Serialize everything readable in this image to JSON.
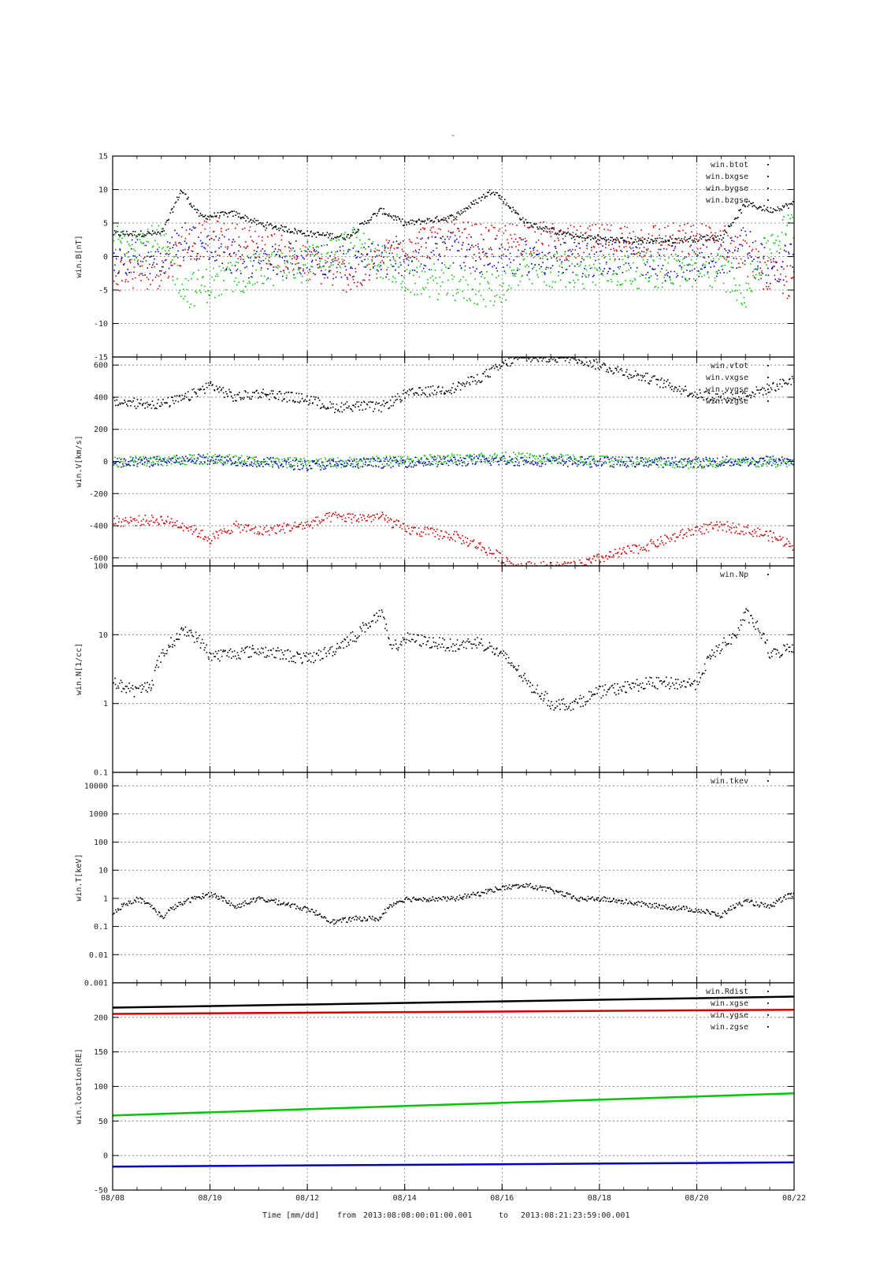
{
  "figure": {
    "top_mark": "-",
    "footer": {
      "time_label": "Time [mm/dd]",
      "from_label": "from",
      "from_value": "2013:08:08:00:01:00.001",
      "to_label": "to",
      "to_value": "2013:08:21:23:59:00.001"
    }
  },
  "chart_data": [
    {
      "type": "scatter",
      "ylabel": "win.B[nT]",
      "ylim": [
        -15,
        15
      ],
      "yscale": "linear",
      "yticks": [
        -15,
        -10,
        -5,
        0,
        5,
        10,
        15
      ],
      "ytick_labels": [
        "-15",
        "-10",
        "-5",
        "0",
        "5",
        "10",
        "15"
      ],
      "grid": true,
      "legend": "top-right",
      "series": [
        {
          "name": "win.btot",
          "color": "#000000",
          "x": [
            8.0,
            9.0,
            9.4,
            9.8,
            10.5,
            11.0,
            12.0,
            12.8,
            13.5,
            14.0,
            15.0,
            15.8,
            16.5,
            17.5,
            18.5,
            19.5,
            20.5,
            21.0,
            21.5,
            22.0
          ],
          "y": [
            3.5,
            3.5,
            10,
            6,
            6.5,
            5,
            3.5,
            3,
            7,
            5,
            6,
            10,
            5,
            3,
            2.5,
            2.5,
            3,
            8,
            7,
            8
          ]
        },
        {
          "name": "win.bxgse",
          "color": "#000000",
          "x": [
            8.0,
            9.0,
            9.5,
            10.0,
            11.0,
            12.0,
            13.0,
            14.0,
            15.0,
            15.8,
            16.5,
            17.5,
            18.5,
            19.5,
            20.5,
            21.0,
            21.5,
            22.0
          ],
          "y": [
            -2.5,
            -2,
            2,
            3,
            2,
            -1,
            -3,
            2,
            3,
            2,
            3,
            2,
            2.5,
            2.5,
            2.5,
            0,
            -3,
            -4
          ]
        },
        {
          "name": "win.bygse",
          "color": "#000000",
          "x": [
            8.0,
            9.0,
            9.5,
            10.0,
            11.0,
            12.0,
            13.0,
            14.0,
            15.0,
            15.8,
            16.5,
            17.5,
            18.5,
            19.5,
            20.5,
            21.0,
            21.5,
            22.0
          ],
          "y": [
            2.5,
            2,
            -5,
            -4,
            -2,
            -1,
            2,
            -3,
            -4,
            -5,
            -2,
            -2,
            -2,
            -2,
            -2,
            -5,
            2,
            5
          ]
        },
        {
          "name": "win.bzgse",
          "color": "#000000",
          "x": [
            8.0,
            9.0,
            9.5,
            10.0,
            11.0,
            12.0,
            13.0,
            14.0,
            15.0,
            15.8,
            16.5,
            17.5,
            18.5,
            19.5,
            20.5,
            21.0,
            21.5,
            22.0
          ],
          "y": [
            0,
            0,
            3,
            1,
            -1,
            0,
            -1,
            0,
            1,
            0,
            0,
            -0.5,
            0,
            -1,
            -0.5,
            2,
            -2,
            0
          ]
        }
      ],
      "display_colors": [
        "#000000",
        "#d40000",
        "#00c800",
        "#0000cc"
      ]
    },
    {
      "type": "scatter",
      "ylabel": "win.V[km/s]",
      "ylim": [
        -650,
        650
      ],
      "yscale": "linear",
      "yticks": [
        -600,
        -400,
        -200,
        0,
        200,
        400,
        600
      ],
      "ytick_labels": [
        "-600",
        "-400",
        "-200",
        "0",
        "200",
        "400",
        "600"
      ],
      "grid": true,
      "legend": "top-right",
      "series": [
        {
          "name": "win.vtot",
          "color": "#000000",
          "x": [
            8.0,
            9.0,
            9.5,
            10.0,
            10.5,
            11.0,
            12.0,
            12.5,
            13.0,
            13.5,
            14.0,
            15.0,
            15.5,
            16.0,
            16.3,
            17.0,
            17.5,
            18.0,
            19.0,
            20.0,
            20.5,
            21.0,
            21.5,
            22.0
          ],
          "y": [
            370,
            360,
            400,
            480,
            400,
            430,
            390,
            340,
            350,
            340,
            420,
            460,
            520,
            600,
            650,
            650,
            650,
            600,
            520,
            420,
            400,
            420,
            460,
            520
          ]
        },
        {
          "name": "win.vxgse",
          "color": "#000000",
          "x": [
            8.0,
            9.0,
            9.5,
            10.0,
            10.5,
            11.0,
            12.0,
            12.5,
            13.0,
            13.5,
            14.0,
            15.0,
            15.5,
            16.0,
            16.3,
            17.0,
            17.5,
            18.0,
            19.0,
            20.0,
            20.5,
            21.0,
            21.5,
            22.0
          ],
          "y": [
            -370,
            -360,
            -400,
            -480,
            -400,
            -430,
            -390,
            -340,
            -350,
            -340,
            -420,
            -460,
            -520,
            -600,
            -650,
            -650,
            -650,
            -600,
            -520,
            -420,
            -400,
            -420,
            -460,
            -520
          ]
        },
        {
          "name": "win.vygse",
          "color": "#000000",
          "x": [
            8.0,
            10.0,
            12.0,
            14.0,
            16.0,
            18.0,
            20.0,
            22.0
          ],
          "y": [
            0,
            20,
            -10,
            10,
            30,
            10,
            -10,
            0
          ]
        },
        {
          "name": "win.vzgse",
          "color": "#000000",
          "x": [
            8.0,
            10.0,
            12.0,
            14.0,
            16.0,
            18.0,
            20.0,
            22.0
          ],
          "y": [
            -10,
            20,
            -20,
            0,
            10,
            0,
            0,
            10
          ]
        }
      ],
      "display_colors": [
        "#000000",
        "#d40000",
        "#00c800",
        "#0000cc"
      ]
    },
    {
      "type": "scatter",
      "ylabel": "win.N[1/cc]",
      "ylim": [
        0.1,
        100
      ],
      "yscale": "log",
      "yticks": [
        0.1,
        1,
        10,
        100
      ],
      "ytick_labels": [
        "0.1",
        "1",
        "10",
        "100"
      ],
      "grid": true,
      "legend": "top-right",
      "series": [
        {
          "name": "win.Np",
          "color": "#000000",
          "x": [
            8.0,
            8.5,
            8.8,
            9.0,
            9.5,
            10.0,
            11.0,
            12.0,
            12.5,
            13.0,
            13.5,
            13.7,
            14.0,
            15.0,
            15.5,
            16.0,
            16.5,
            17.0,
            17.5,
            18.0,
            19.0,
            20.0,
            20.8,
            21.0,
            21.5,
            22.0
          ],
          "y": [
            2,
            1.5,
            2,
            5,
            12,
            5,
            6,
            4.5,
            6,
            10,
            20,
            6,
            9,
            7,
            8,
            5,
            2,
            1,
            1,
            1.5,
            2,
            2,
            10,
            20,
            5,
            7
          ]
        }
      ]
    },
    {
      "type": "scatter",
      "ylabel": "win.T[keV]",
      "ylim": [
        0.001,
        30000
      ],
      "yscale": "log",
      "yticks": [
        0.001,
        0.01,
        0.1,
        1,
        10,
        100,
        1000,
        10000
      ],
      "ytick_labels": [
        "0.001",
        "0.01",
        "0.1",
        "1",
        "10",
        "100",
        "1000",
        "10000"
      ],
      "grid": true,
      "legend": "top-right",
      "series": [
        {
          "name": "win.tkev",
          "color": "#000000",
          "x": [
            8.0,
            8.5,
            9.0,
            9.5,
            10.0,
            10.5,
            11.0,
            12.0,
            12.5,
            13.0,
            13.5,
            13.7,
            14.0,
            15.0,
            15.5,
            16.0,
            16.5,
            17.0,
            17.5,
            18.0,
            19.0,
            20.0,
            20.5,
            21.0,
            21.5,
            22.0
          ],
          "y": [
            0.3,
            1,
            0.2,
            0.8,
            1.5,
            0.5,
            1,
            0.4,
            0.15,
            0.2,
            0.2,
            0.6,
            1,
            1,
            1.5,
            2.5,
            3,
            2,
            1,
            1,
            0.6,
            0.4,
            0.25,
            0.8,
            0.5,
            1.5
          ]
        }
      ]
    },
    {
      "type": "line",
      "ylabel": "win.location[RE]",
      "ylim": [
        -50,
        250
      ],
      "yscale": "linear",
      "yticks": [
        -50,
        0,
        50,
        100,
        150,
        200
      ],
      "ytick_labels": [
        "-50",
        "0",
        "50",
        "100",
        "150",
        "200"
      ],
      "xlabel": "Time [mm/dd]",
      "xlim": [
        8,
        22
      ],
      "xticks": [
        8,
        10,
        12,
        14,
        16,
        18,
        20,
        22
      ],
      "xtick_labels": [
        "08/08",
        "08/10",
        "08/12",
        "08/14",
        "08/16",
        "08/18",
        "08/20",
        "08/22"
      ],
      "grid": true,
      "legend": "top-right",
      "series": [
        {
          "name": "win.Rdist",
          "color": "#000000",
          "x": [
            8,
            22
          ],
          "y": [
            214,
            230
          ]
        },
        {
          "name": "win.xgse",
          "color": "#000000",
          "x": [
            8,
            22
          ],
          "y": [
            205,
            211
          ]
        },
        {
          "name": "win.ygse",
          "color": "#000000",
          "x": [
            8,
            22
          ],
          "y": [
            58,
            90
          ]
        },
        {
          "name": "win.zgse",
          "color": "#000000",
          "x": [
            8,
            22
          ],
          "y": [
            -16,
            -10
          ]
        }
      ],
      "display_colors": [
        "#000000",
        "#d40000",
        "#00c800",
        "#0000cc"
      ]
    }
  ]
}
